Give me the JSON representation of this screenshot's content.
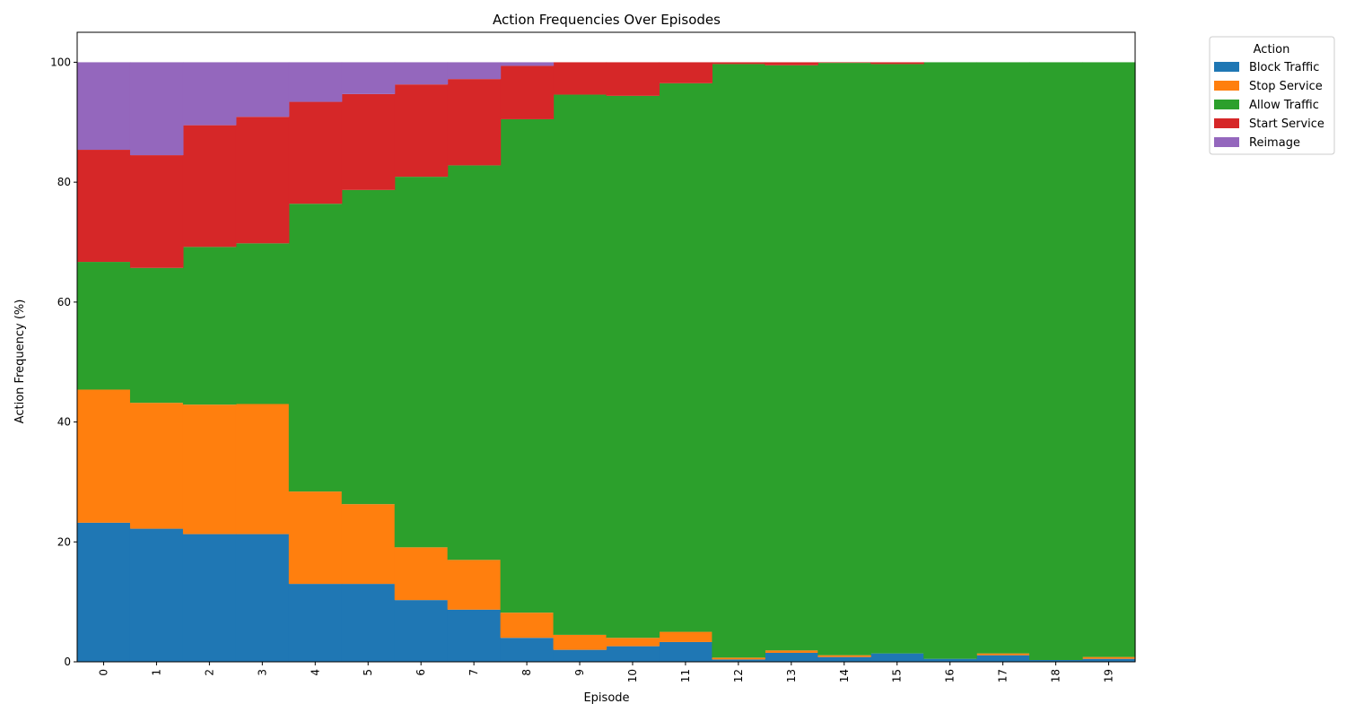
{
  "chart_data": {
    "type": "bar",
    "stacked": true,
    "title": "Action Frequencies Over Episodes",
    "xlabel": "Episode",
    "ylabel": "Action Frequency (%)",
    "ylim": [
      0,
      105
    ],
    "yticks": [
      0,
      20,
      40,
      60,
      80,
      100
    ],
    "grid": false,
    "legend": {
      "title": "Action",
      "placement": "outside-top-right"
    },
    "categories": [
      "0",
      "1",
      "2",
      "3",
      "4",
      "5",
      "6",
      "7",
      "8",
      "9",
      "10",
      "11",
      "12",
      "13",
      "14",
      "15",
      "16",
      "17",
      "18",
      "19"
    ],
    "series": [
      {
        "name": "Block Traffic",
        "color": "#1f77b4",
        "values": [
          23.2,
          22.2,
          21.3,
          21.3,
          13.0,
          13.0,
          10.3,
          8.7,
          4.0,
          2.0,
          2.6,
          3.3,
          0.4,
          1.5,
          0.8,
          1.4,
          0.5,
          1.1,
          0.3,
          0.5
        ]
      },
      {
        "name": "Stop Service",
        "color": "#ff7f0e",
        "values": [
          22.2,
          21.0,
          21.6,
          21.7,
          15.4,
          13.3,
          8.8,
          8.3,
          4.2,
          2.5,
          1.4,
          1.7,
          0.3,
          0.4,
          0.3,
          0.0,
          0.0,
          0.3,
          0.0,
          0.3
        ]
      },
      {
        "name": "Allow Traffic",
        "color": "#2ca02c",
        "values": [
          21.3,
          22.5,
          26.3,
          26.8,
          48.0,
          52.4,
          61.8,
          65.8,
          82.3,
          90.1,
          90.4,
          91.5,
          99.0,
          97.6,
          98.8,
          98.3,
          99.5,
          98.6,
          99.7,
          99.2
        ]
      },
      {
        "name": "Start Service",
        "color": "#d62728",
        "values": [
          18.7,
          18.8,
          20.3,
          21.1,
          17.0,
          16.0,
          15.4,
          14.4,
          8.9,
          5.4,
          5.6,
          3.5,
          0.3,
          0.5,
          0.1,
          0.3,
          0.0,
          0.0,
          0.0,
          0.0
        ]
      },
      {
        "name": "Reimage",
        "color": "#9467bd",
        "values": [
          14.6,
          15.5,
          10.5,
          9.1,
          6.6,
          5.3,
          3.7,
          2.8,
          0.6,
          0.0,
          0.0,
          0.0,
          0.0,
          0.0,
          0.0,
          0.0,
          0.0,
          0.0,
          0.0,
          0.0
        ]
      }
    ]
  }
}
